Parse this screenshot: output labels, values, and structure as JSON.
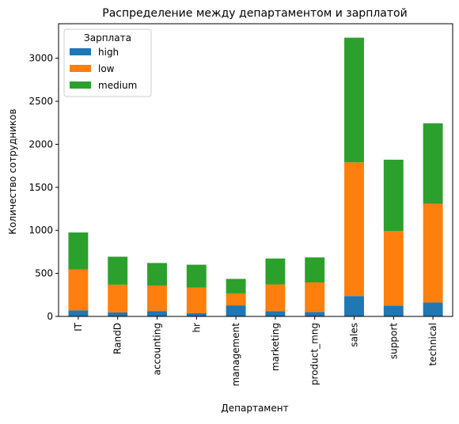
{
  "chart_data": {
    "type": "stacked_bar",
    "title": "Распределение между департаментом и зарплатой",
    "x_label": "Департамент",
    "y_label": "Количество сотрудников",
    "categories": [
      "IT",
      "RandD",
      "accounting",
      "hr",
      "management",
      "marketing",
      "product_mng",
      "sales",
      "support",
      "technical"
    ],
    "series": [
      {
        "name": "high",
        "color": "#1f77b4",
        "values": [
          71,
          47,
          63,
          38,
          128,
          62,
          52,
          237,
          126,
          162
        ]
      },
      {
        "name": "low",
        "color": "#ff7f0e",
        "values": [
          476,
          322,
          296,
          296,
          139,
          310,
          343,
          1553,
          867,
          1146
        ]
      },
      {
        "name": "medium",
        "color": "#2ca02c",
        "values": [
          429,
          325,
          262,
          267,
          169,
          301,
          291,
          1449,
          828,
          936
        ]
      }
    ],
    "legend_title": "Зарплата",
    "legend": "upper left",
    "ylim": [
      0,
      3401
    ],
    "yticks": [
      0,
      500,
      1000,
      1500,
      2000,
      2500,
      3000
    ]
  }
}
